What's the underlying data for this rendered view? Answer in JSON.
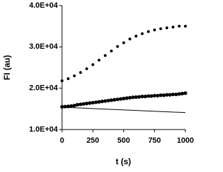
{
  "chart_data": {
    "type": "scatter",
    "x_label": "t (s)",
    "y_label": "FI (au)",
    "xlim": [
      0,
      1000
    ],
    "xticks": [
      0,
      250,
      500,
      750,
      1000
    ],
    "ylim": [
      10000,
      40000
    ],
    "yticks": [
      {
        "value": 10000,
        "label": "1.0E+04"
      },
      {
        "value": 20000,
        "label": "2.0E+04"
      },
      {
        "value": 30000,
        "label": "3.0E+04"
      },
      {
        "value": 40000,
        "label": "4.0E+04"
      }
    ],
    "series": [
      {
        "style": "dots",
        "color": "#000000",
        "x": [
          0,
          50,
          100,
          150,
          200,
          250,
          300,
          350,
          400,
          450,
          500,
          550,
          600,
          650,
          700,
          750,
          800,
          850,
          900,
          950,
          1000
        ],
        "values": [
          21800,
          22300,
          23000,
          23800,
          24700,
          25700,
          26800,
          27900,
          29000,
          30100,
          31000,
          31900,
          32600,
          33200,
          33700,
          34100,
          34400,
          34600,
          34800,
          35000,
          35000
        ]
      },
      {
        "style": "thick",
        "color": "#000000",
        "x": [
          0,
          25,
          50,
          75,
          100,
          125,
          150,
          175,
          200,
          225,
          250,
          275,
          300,
          325,
          350,
          375,
          400,
          425,
          450,
          475,
          500,
          525,
          550,
          575,
          600,
          625,
          650,
          675,
          700,
          725,
          750,
          775,
          800,
          825,
          850,
          875,
          900,
          925,
          950,
          975,
          1000
        ],
        "values": [
          15500,
          15550,
          15600,
          15700,
          15800,
          16000,
          16100,
          16200,
          16300,
          16400,
          16500,
          16600,
          16700,
          16800,
          16900,
          17000,
          17100,
          17200,
          17300,
          17400,
          17500,
          17600,
          17700,
          17800,
          17850,
          17900,
          18000,
          18000,
          18100,
          18100,
          18200,
          18200,
          18300,
          18300,
          18400,
          18400,
          18500,
          18500,
          18600,
          18700,
          18800
        ]
      },
      {
        "style": "line",
        "color": "#000000",
        "x": [
          0,
          1000
        ],
        "values": [
          15400,
          14100
        ]
      }
    ]
  }
}
